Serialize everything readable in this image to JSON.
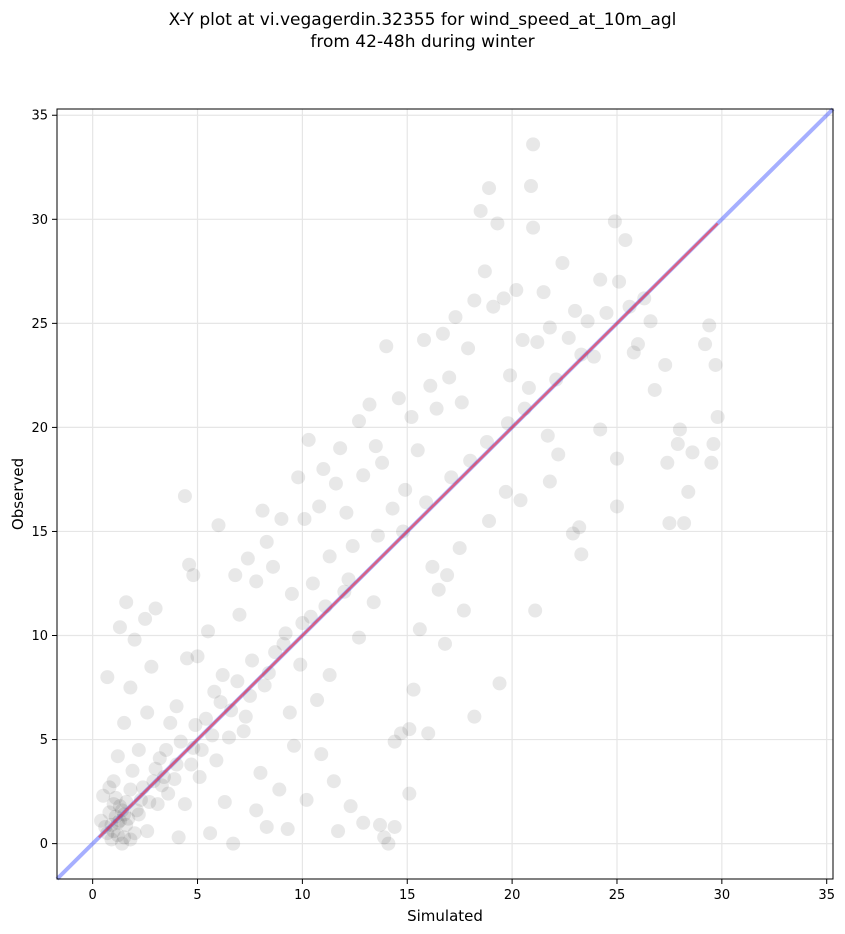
{
  "chart_data": {
    "type": "scatter",
    "title_line1": "X-Y plot at vi.vegagerdin.32355 for wind_speed_at_10m_agl",
    "title_line2": "from 42-48h during winter",
    "xlabel": "Simulated",
    "ylabel": "Observed",
    "xlim": [
      -1.7,
      35.3
    ],
    "ylim": [
      -1.7,
      35.3
    ],
    "xticks": [
      0,
      5,
      10,
      15,
      20,
      25,
      30,
      35
    ],
    "yticks": [
      0,
      5,
      10,
      15,
      20,
      25,
      30,
      35
    ],
    "grid": true,
    "point_color": "#000000",
    "point_alpha": 0.09,
    "identity_line": {
      "from": [
        -1.7,
        -1.7
      ],
      "to": [
        35.3,
        35.3
      ],
      "color": "#3a4dff",
      "alpha": 0.45
    },
    "fit_line": {
      "from": [
        0.3,
        0.3
      ],
      "to": [
        29.8,
        29.8
      ],
      "color": "#ff2020",
      "alpha": 0.55
    },
    "series": [
      {
        "values": [
          [
            1.2,
            1.0
          ],
          [
            1.0,
            0.6
          ],
          [
            1.5,
            0.3
          ],
          [
            0.8,
            1.5
          ],
          [
            1.3,
            1.8
          ],
          [
            1.6,
            0.9
          ],
          [
            0.9,
            0.2
          ],
          [
            1.1,
            2.2
          ],
          [
            1.7,
            1.2
          ],
          [
            0.6,
            0.8
          ],
          [
            1.4,
            0.0
          ],
          [
            2.0,
            0.5
          ],
          [
            1.0,
            3.0
          ],
          [
            1.8,
            2.6
          ],
          [
            0.5,
            2.3
          ],
          [
            0.4,
            1.1
          ],
          [
            2.2,
            1.4
          ],
          [
            1.2,
            4.2
          ],
          [
            0.7,
            8.0
          ],
          [
            1.3,
            10.4
          ],
          [
            1.6,
            11.6
          ],
          [
            2.0,
            9.8
          ],
          [
            2.5,
            10.8
          ],
          [
            2.8,
            8.5
          ],
          [
            3.0,
            11.3
          ],
          [
            1.8,
            7.5
          ],
          [
            2.6,
            6.3
          ],
          [
            1.5,
            5.8
          ],
          [
            2.2,
            4.5
          ],
          [
            3.0,
            3.6
          ],
          [
            3.3,
            2.8
          ],
          [
            3.1,
            1.9
          ],
          [
            3.5,
            4.5
          ],
          [
            4.0,
            6.6
          ],
          [
            4.5,
            8.9
          ],
          [
            4.6,
            13.4
          ],
          [
            4.8,
            12.9
          ],
          [
            4.4,
            16.7
          ],
          [
            5.0,
            9.0
          ],
          [
            5.5,
            10.2
          ],
          [
            6.0,
            15.3
          ],
          [
            6.2,
            8.1
          ],
          [
            6.8,
            12.9
          ],
          [
            7.0,
            11.0
          ],
          [
            7.4,
            13.7
          ],
          [
            7.8,
            12.6
          ],
          [
            8.1,
            16.0
          ],
          [
            8.3,
            14.5
          ],
          [
            8.6,
            13.3
          ],
          [
            9.0,
            15.6
          ],
          [
            9.2,
            10.1
          ],
          [
            9.5,
            12.0
          ],
          [
            9.8,
            17.6
          ],
          [
            10.1,
            15.6
          ],
          [
            10.3,
            19.4
          ],
          [
            10.5,
            12.5
          ],
          [
            10.8,
            16.2
          ],
          [
            11.0,
            18.0
          ],
          [
            11.3,
            13.8
          ],
          [
            11.6,
            17.3
          ],
          [
            11.8,
            19.0
          ],
          [
            12.1,
            15.9
          ],
          [
            12.4,
            14.3
          ],
          [
            12.7,
            20.3
          ],
          [
            12.9,
            17.7
          ],
          [
            13.2,
            21.1
          ],
          [
            13.5,
            19.1
          ],
          [
            13.8,
            18.3
          ],
          [
            14.0,
            23.9
          ],
          [
            14.3,
            16.1
          ],
          [
            14.6,
            21.4
          ],
          [
            14.9,
            17.0
          ],
          [
            15.2,
            20.5
          ],
          [
            15.5,
            18.9
          ],
          [
            15.8,
            24.2
          ],
          [
            16.1,
            22.0
          ],
          [
            16.4,
            20.9
          ],
          [
            16.7,
            24.5
          ],
          [
            17.0,
            22.4
          ],
          [
            17.3,
            25.3
          ],
          [
            17.6,
            21.2
          ],
          [
            17.9,
            23.8
          ],
          [
            18.2,
            26.1
          ],
          [
            18.5,
            30.4
          ],
          [
            18.7,
            27.5
          ],
          [
            18.9,
            31.5
          ],
          [
            19.1,
            25.8
          ],
          [
            19.3,
            29.8
          ],
          [
            19.6,
            26.2
          ],
          [
            19.9,
            22.5
          ],
          [
            20.2,
            26.6
          ],
          [
            20.5,
            24.2
          ],
          [
            20.8,
            21.9
          ],
          [
            21.0,
            33.6
          ],
          [
            20.9,
            31.6
          ],
          [
            21.0,
            29.6
          ],
          [
            21.2,
            24.1
          ],
          [
            21.5,
            26.5
          ],
          [
            21.8,
            24.8
          ],
          [
            22.1,
            22.3
          ],
          [
            22.4,
            27.9
          ],
          [
            22.7,
            24.3
          ],
          [
            23.0,
            25.6
          ],
          [
            23.3,
            23.5
          ],
          [
            23.6,
            25.1
          ],
          [
            23.9,
            23.4
          ],
          [
            24.2,
            27.1
          ],
          [
            24.5,
            25.5
          ],
          [
            24.9,
            29.9
          ],
          [
            25.1,
            27.0
          ],
          [
            25.4,
            29.0
          ],
          [
            25.6,
            25.8
          ],
          [
            25.8,
            23.6
          ],
          [
            26.0,
            24.0
          ],
          [
            26.3,
            26.2
          ],
          [
            26.6,
            25.1
          ],
          [
            24.2,
            19.9
          ],
          [
            25.0,
            18.5
          ],
          [
            25.0,
            16.2
          ],
          [
            23.2,
            15.2
          ],
          [
            23.3,
            13.9
          ],
          [
            22.9,
            14.9
          ],
          [
            22.2,
            18.7
          ],
          [
            21.8,
            17.4
          ],
          [
            21.7,
            19.6
          ],
          [
            21.1,
            11.2
          ],
          [
            19.4,
            7.7
          ],
          [
            18.2,
            6.1
          ],
          [
            17.7,
            11.2
          ],
          [
            16.8,
            9.6
          ],
          [
            16.5,
            12.2
          ],
          [
            15.6,
            10.3
          ],
          [
            15.3,
            7.4
          ],
          [
            15.1,
            5.5
          ],
          [
            16.0,
            5.3
          ],
          [
            14.7,
            5.3
          ],
          [
            14.4,
            4.9
          ],
          [
            15.1,
            2.4
          ],
          [
            14.4,
            0.8
          ],
          [
            14.1,
            0.0
          ],
          [
            13.9,
            0.3
          ],
          [
            13.7,
            0.9
          ],
          [
            12.9,
            1.0
          ],
          [
            12.3,
            1.8
          ],
          [
            11.7,
            0.6
          ],
          [
            11.5,
            3.0
          ],
          [
            10.9,
            4.3
          ],
          [
            10.2,
            2.1
          ],
          [
            9.6,
            4.7
          ],
          [
            9.3,
            0.7
          ],
          [
            8.9,
            2.6
          ],
          [
            8.3,
            0.8
          ],
          [
            8.0,
            3.4
          ],
          [
            7.8,
            1.6
          ],
          [
            7.2,
            5.4
          ],
          [
            6.7,
            0.0
          ],
          [
            6.3,
            2.0
          ],
          [
            5.9,
            4.0
          ],
          [
            5.6,
            0.5
          ],
          [
            5.1,
            3.2
          ],
          [
            4.4,
            1.9
          ],
          [
            4.1,
            0.3
          ],
          [
            3.7,
            5.8
          ],
          [
            2.6,
            0.6
          ],
          [
            27.4,
            18.3
          ],
          [
            27.5,
            15.4
          ],
          [
            27.9,
            19.2
          ],
          [
            28.0,
            19.9
          ],
          [
            28.2,
            15.4
          ],
          [
            28.4,
            16.9
          ],
          [
            28.6,
            18.8
          ],
          [
            29.2,
            24.0
          ],
          [
            29.4,
            24.9
          ],
          [
            29.6,
            19.2
          ],
          [
            29.5,
            18.3
          ],
          [
            29.7,
            23.0
          ],
          [
            29.8,
            20.5
          ],
          [
            27.3,
            23.0
          ],
          [
            26.8,
            21.8
          ],
          [
            18.9,
            15.5
          ],
          [
            19.7,
            16.9
          ],
          [
            20.4,
            16.5
          ],
          [
            17.5,
            14.2
          ],
          [
            16.9,
            12.9
          ],
          [
            16.2,
            13.3
          ],
          [
            13.4,
            11.6
          ],
          [
            12.7,
            9.9
          ],
          [
            12.2,
            12.7
          ],
          [
            11.3,
            8.1
          ],
          [
            10.7,
            6.9
          ],
          [
            10.4,
            10.9
          ],
          [
            9.9,
            8.6
          ],
          [
            9.4,
            6.3
          ],
          [
            8.7,
            9.2
          ],
          [
            8.2,
            7.6
          ],
          [
            7.6,
            8.8
          ],
          [
            7.3,
            6.1
          ],
          [
            6.9,
            7.8
          ],
          [
            6.5,
            5.1
          ],
          [
            6.1,
            6.8
          ],
          [
            5.8,
            7.3
          ],
          [
            5.4,
            6.0
          ],
          [
            5.2,
            4.5
          ],
          [
            4.9,
            5.7
          ],
          [
            4.7,
            3.8
          ],
          [
            4.2,
            4.9
          ],
          [
            3.9,
            3.1
          ],
          [
            3.6,
            2.4
          ],
          [
            3.2,
            4.1
          ],
          [
            2.9,
            3.0
          ],
          [
            2.7,
            2.0
          ],
          [
            2.4,
            2.7
          ],
          [
            2.1,
            1.6
          ],
          [
            1.9,
            3.5
          ],
          [
            1.1,
            1.3
          ],
          [
            0.9,
            0.9
          ],
          [
            1.4,
            1.6
          ],
          [
            1.2,
            0.4
          ],
          [
            1.6,
            2.0
          ],
          [
            0.7,
            0.5
          ],
          [
            1.3,
            1.1
          ],
          [
            1.0,
            1.9
          ],
          [
            1.8,
            0.2
          ],
          [
            1.5,
            1.4
          ],
          [
            0.8,
            2.7
          ],
          [
            12.0,
            12.1
          ],
          [
            13.6,
            14.8
          ],
          [
            14.8,
            15.0
          ],
          [
            15.9,
            16.4
          ],
          [
            17.1,
            17.6
          ],
          [
            18.0,
            18.4
          ],
          [
            18.8,
            19.3
          ],
          [
            19.8,
            20.2
          ],
          [
            20.6,
            20.9
          ],
          [
            11.1,
            11.4
          ],
          [
            10.0,
            10.6
          ],
          [
            9.1,
            9.6
          ],
          [
            8.4,
            8.2
          ],
          [
            7.5,
            7.1
          ],
          [
            6.6,
            6.4
          ],
          [
            5.7,
            5.2
          ],
          [
            4.8,
            4.6
          ],
          [
            4.0,
            3.8
          ],
          [
            3.4,
            3.2
          ],
          [
            2.3,
            2.1
          ]
        ]
      }
    ]
  }
}
